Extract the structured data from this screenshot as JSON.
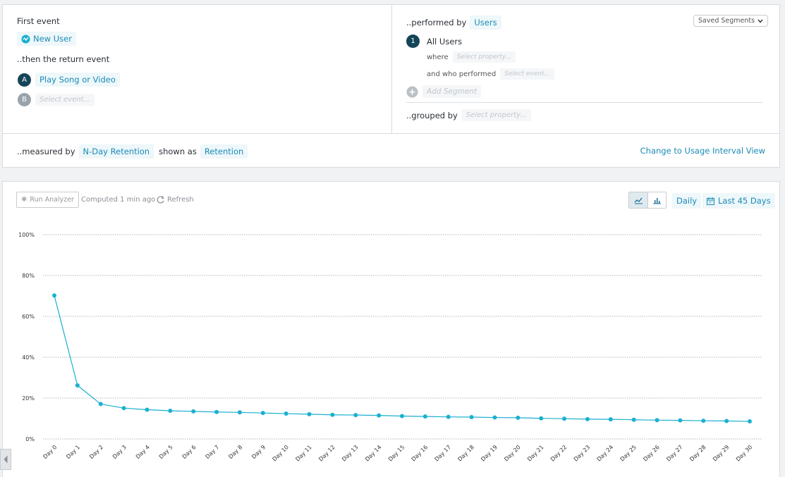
{
  "query": {
    "first_event_label": "First event",
    "first_event_value": "New User",
    "return_event_label": "..then the return event",
    "return_events": [
      {
        "badge": "A",
        "value": "Play Song or Video"
      },
      {
        "badge": "B",
        "placeholder": "Select event..."
      }
    ],
    "performed_by_label": "..performed by",
    "performed_by_value": "Users",
    "saved_segments": "Saved Segments",
    "segment": {
      "badge": "1",
      "name": "All Users",
      "where_label": "where",
      "where_placeholder": "Select property...",
      "who_performed_label": "and who performed",
      "who_performed_placeholder": "Select event..."
    },
    "add_segment": "Add Segment",
    "grouped_by_label": "..grouped by",
    "grouped_by_placeholder": "Select property...",
    "measured_by_label": "..measured by",
    "measured_by_value": "N-Day Retention",
    "shown_as_label": "shown as",
    "shown_as_value": "Retention",
    "usage_link": "Change to Usage Interval View"
  },
  "toolbar": {
    "run_analyzer": "Run Analyzer",
    "computed": "Computed 1 min ago",
    "refresh": "Refresh",
    "interval": "Daily",
    "date_range": "Last 45 Days"
  },
  "colors": {
    "accent": "#1ab0cf",
    "link": "#1a8bb6",
    "badge_dark": "#144458"
  },
  "chart_data": {
    "type": "line",
    "categories": [
      "Day 0",
      "Day 1",
      "Day 2",
      "Day 3",
      "Day 4",
      "Day 5",
      "Day 6",
      "Day 7",
      "Day 8",
      "Day 9",
      "Day 10",
      "Day 11",
      "Day 12",
      "Day 13",
      "Day 14",
      "Day 15",
      "Day 16",
      "Day 17",
      "Day 18",
      "Day 19",
      "Day 20",
      "Day 21",
      "Day 22",
      "Day 23",
      "Day 24",
      "Day 25",
      "Day 26",
      "Day 27",
      "Day 28",
      "Day 29",
      "Day 30"
    ],
    "series": [
      {
        "values": [
          70.2,
          26.2,
          17.1,
          15.1,
          14.3,
          13.8,
          13.5,
          13.2,
          13.0,
          12.7,
          12.4,
          12.1,
          11.8,
          11.7,
          11.5,
          11.2,
          11.0,
          10.8,
          10.7,
          10.5,
          10.4,
          10.1,
          9.9,
          9.7,
          9.6,
          9.4,
          9.2,
          9.1,
          8.9,
          8.8,
          8.6
        ]
      }
    ],
    "y_ticks": [
      "0%",
      "20%",
      "40%",
      "60%",
      "80%",
      "100%"
    ],
    "ylim": [
      0,
      100
    ],
    "grid": true
  }
}
